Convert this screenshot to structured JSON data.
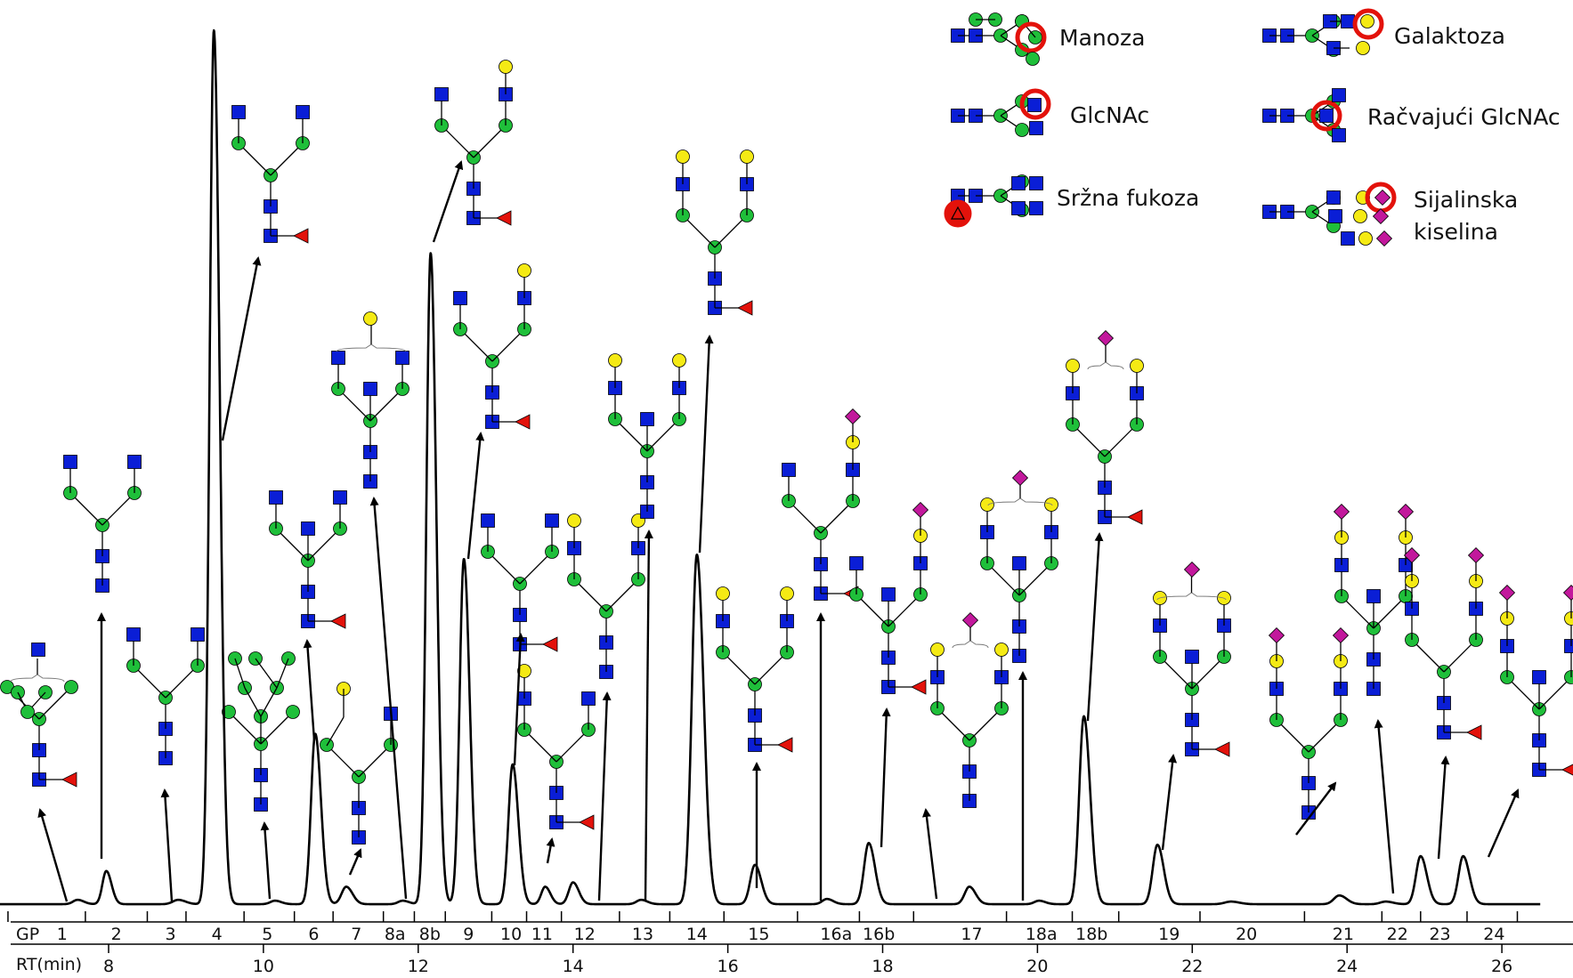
{
  "legend": {
    "mannose": "Manoza",
    "galactose": "Galaktoza",
    "glcnac": "GlcNAc",
    "bisecting_glcnac": "Račvajući GlcNAc",
    "core_fucose": "Sržna fukoza",
    "sialic_acid_line1": "Sijalinska",
    "sialic_acid_line2": "kiselina"
  },
  "colors": {
    "glcnac": "#0a1ed6",
    "mannose": "#1fbf3a",
    "galactose": "#f5ea14",
    "fucose": "#e3120b",
    "sialic_acid": "#c2189c",
    "highlight": "#e3120b",
    "trace": "#000000"
  },
  "chart_data": {
    "type": "line",
    "title": "",
    "xlabel": "RT(min)",
    "ylabel": "",
    "xlim": [
      6.0,
      26.5
    ],
    "x_ticks": [
      8,
      10,
      12,
      14,
      16,
      18,
      20,
      22,
      24,
      26
    ],
    "gp_row_label": "GP",
    "gp_labels": [
      {
        "label": "1",
        "rt": 7.4
      },
      {
        "label": "2",
        "rt": 8.1
      },
      {
        "label": "3",
        "rt": 8.8
      },
      {
        "label": "4",
        "rt": 9.4
      },
      {
        "label": "5",
        "rt": 10.05
      },
      {
        "label": "6",
        "rt": 10.65
      },
      {
        "label": "7",
        "rt": 11.2
      },
      {
        "label": "8a",
        "rt": 11.7
      },
      {
        "label": "8b",
        "rt": 12.15
      },
      {
        "label": "9",
        "rt": 12.65
      },
      {
        "label": "10",
        "rt": 13.2
      },
      {
        "label": "11",
        "rt": 13.6
      },
      {
        "label": "12",
        "rt": 14.15
      },
      {
        "label": "13",
        "rt": 14.9
      },
      {
        "label": "14",
        "rt": 15.6
      },
      {
        "label": "15",
        "rt": 16.4
      },
      {
        "label": "16a",
        "rt": 17.4
      },
      {
        "label": "16b",
        "rt": 17.95
      },
      {
        "label": "17",
        "rt": 19.15
      },
      {
        "label": "18a",
        "rt": 20.05
      },
      {
        "label": "18b",
        "rt": 20.7
      },
      {
        "label": "19",
        "rt": 21.7
      },
      {
        "label": "20",
        "rt": 22.7
      },
      {
        "label": "21",
        "rt": 23.95
      },
      {
        "label": "22",
        "rt": 24.65
      },
      {
        "label": "23",
        "rt": 25.2
      },
      {
        "label": "24",
        "rt": 25.9
      }
    ],
    "series": [
      {
        "values_note": "",
        "peaks": [
          {
            "gp": "1",
            "rt": 7.6,
            "height": 0.5,
            "width": 0.06
          },
          {
            "gp": "2",
            "rt": 7.97,
            "height": 3.8,
            "width": 0.05
          },
          {
            "gp": "3",
            "rt": 8.9,
            "height": 0.5,
            "width": 0.07
          },
          {
            "gp": "4",
            "rt": 9.36,
            "height": 100,
            "width": 0.055
          },
          {
            "gp": "5",
            "rt": 10.15,
            "height": 0.4,
            "width": 0.06
          },
          {
            "gp": "6",
            "rt": 10.67,
            "height": 19.5,
            "width": 0.055
          },
          {
            "gp": "7",
            "rt": 11.07,
            "height": 2.0,
            "width": 0.06
          },
          {
            "gp": "8a",
            "rt": 11.8,
            "height": 0.4,
            "width": 0.06
          },
          {
            "gp": "8b",
            "rt": 12.16,
            "height": 74.5,
            "width": 0.055
          },
          {
            "gp": "9",
            "rt": 12.59,
            "height": 39.5,
            "width": 0.055
          },
          {
            "gp": "10",
            "rt": 13.22,
            "height": 16.0,
            "width": 0.055
          },
          {
            "gp": "11",
            "rt": 13.64,
            "height": 2.0,
            "width": 0.05
          },
          {
            "gp": "12",
            "rt": 14.0,
            "height": 2.5,
            "width": 0.055
          },
          {
            "gp": "13",
            "rt": 14.88,
            "height": 0.5,
            "width": 0.06
          },
          {
            "gp": "14",
            "rt": 15.6,
            "height": 40.0,
            "width": 0.065
          },
          {
            "gp": "15",
            "rt": 16.35,
            "height": 4.5,
            "width": 0.06
          },
          {
            "gp": "16a",
            "rt": 17.28,
            "height": 0.6,
            "width": 0.06
          },
          {
            "gp": "16b",
            "rt": 17.82,
            "height": 7.0,
            "width": 0.06
          },
          {
            "gp": "17",
            "rt": 19.12,
            "height": 2.0,
            "width": 0.06
          },
          {
            "gp": "18a",
            "rt": 20.02,
            "height": 0.4,
            "width": 0.06
          },
          {
            "gp": "18b",
            "rt": 20.6,
            "height": 21.5,
            "width": 0.06
          },
          {
            "gp": "19",
            "rt": 21.55,
            "height": 6.8,
            "width": 0.06
          },
          {
            "gp": "20",
            "rt": 22.5,
            "height": 0.3,
            "width": 0.08
          },
          {
            "gp": "21",
            "rt": 23.9,
            "height": 1.0,
            "width": 0.07
          },
          {
            "gp": "22",
            "rt": 24.5,
            "height": 0.3,
            "width": 0.07
          },
          {
            "gp": "23",
            "rt": 24.95,
            "height": 5.5,
            "width": 0.06
          },
          {
            "gp": "24",
            "rt": 25.5,
            "height": 5.5,
            "width": 0.06
          }
        ],
        "baseline": 0.4
      }
    ]
  }
}
